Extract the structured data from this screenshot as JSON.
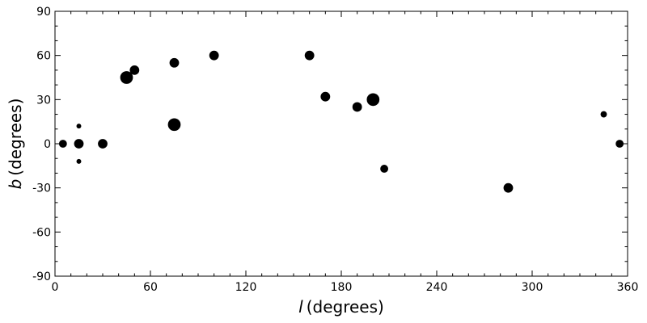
{
  "chart_data": {
    "type": "scatter",
    "title": "",
    "xlabel_var": "l",
    "xlabel_unit": "(degrees)",
    "ylabel_var": "b",
    "ylabel_unit": "(degrees)",
    "xlim": [
      0,
      360
    ],
    "ylim": [
      -90,
      90
    ],
    "xticks": [
      0,
      60,
      120,
      180,
      240,
      300,
      360
    ],
    "yticks": [
      -90,
      -60,
      -30,
      0,
      30,
      60,
      90
    ],
    "x_minor_step": 10,
    "y_minor_step": 10,
    "grid": false,
    "legend": "none",
    "marker_color": "#000000",
    "fields_note": "",
    "fields": [
      {
        "l": 5,
        "b": 0,
        "r": 2.5
      },
      {
        "l": 15,
        "b": 0,
        "r": 3
      },
      {
        "l": 30,
        "b": 0,
        "r": 3
      },
      {
        "l": 15,
        "b": 12,
        "r": 1.5
      },
      {
        "l": 15,
        "b": -12,
        "r": 1.5
      },
      {
        "l": 45,
        "b": 45,
        "r": 4
      },
      {
        "l": 50,
        "b": 50,
        "r": 3
      },
      {
        "l": 75,
        "b": 13,
        "r": 4
      },
      {
        "l": 200,
        "b": 30,
        "r": 4
      },
      {
        "l": 190,
        "b": 25,
        "r": 3
      },
      {
        "l": 170,
        "b": 32,
        "r": 3
      },
      {
        "l": 207,
        "b": -17,
        "r": 2.5
      },
      {
        "l": 355,
        "b": 0,
        "r": 2.5
      },
      {
        "l": 345,
        "b": 20,
        "r": 2
      },
      {
        "l": 285,
        "b": -30,
        "r": 3
      },
      {
        "l": 100,
        "b": 60,
        "r": 3
      },
      {
        "l": 160,
        "b": 60,
        "r": 3
      },
      {
        "l": 75,
        "b": 55,
        "r": 3
      }
    ]
  }
}
